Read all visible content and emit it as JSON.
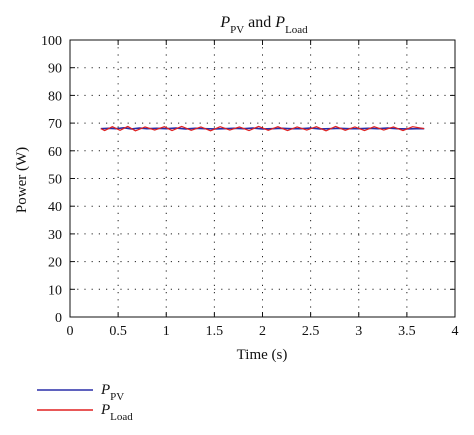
{
  "chart_data": {
    "type": "line",
    "title": {
      "prefix": "P",
      "prefix_sub": "PV",
      "middle": " and ",
      "suffix": "P",
      "suffix_sub": "Load"
    },
    "xlabel": "Time (s)",
    "ylabel": "Power (W)",
    "xlim": [
      0,
      4
    ],
    "ylim": [
      0,
      100
    ],
    "xticks": [
      "0",
      "0.5",
      "1",
      "1.5",
      "2",
      "2.5",
      "3",
      "3.5",
      "4"
    ],
    "xtick_values": [
      0,
      0.5,
      1,
      1.5,
      2,
      2.5,
      3,
      3.5,
      4
    ],
    "yticks": [
      "0",
      "10",
      "20",
      "30",
      "40",
      "50",
      "60",
      "70",
      "80",
      "90",
      "100"
    ],
    "ytick_values": [
      0,
      10,
      20,
      30,
      40,
      50,
      60,
      70,
      80,
      90,
      100
    ],
    "grid": true,
    "legend_position": "below",
    "series": [
      {
        "name_main": "P",
        "name_sub": "PV",
        "color": "#2a2ea8",
        "x": [
          0.32,
          0.4,
          0.48,
          0.56,
          0.64,
          0.72,
          0.8,
          0.9,
          1.0,
          1.1,
          1.2,
          1.3,
          1.4,
          1.5,
          1.6,
          1.7,
          1.8,
          1.9,
          2.0,
          2.1,
          2.2,
          2.3,
          2.4,
          2.5,
          2.6,
          2.7,
          2.8,
          2.9,
          3.0,
          3.1,
          3.2,
          3.3,
          3.4,
          3.5,
          3.6,
          3.68
        ],
        "values": [
          68.0,
          68.1,
          68.0,
          68.3,
          67.9,
          68.2,
          68.0,
          68.1,
          68.0,
          68.2,
          67.9,
          68.1,
          68.0,
          67.9,
          68.0,
          68.1,
          68.0,
          68.2,
          67.9,
          68.0,
          68.1,
          68.0,
          68.0,
          68.2,
          67.9,
          68.0,
          68.1,
          68.0,
          68.0,
          68.1,
          68.0,
          68.2,
          68.0,
          67.9,
          68.0,
          68.0
        ]
      },
      {
        "name_main": "P",
        "name_sub": "Load",
        "color": "#e02020",
        "x": [
          0.32,
          0.36,
          0.44,
          0.52,
          0.6,
          0.68,
          0.78,
          0.88,
          0.98,
          1.06,
          1.16,
          1.26,
          1.36,
          1.46,
          1.56,
          1.66,
          1.76,
          1.86,
          1.96,
          2.06,
          2.16,
          2.26,
          2.36,
          2.46,
          2.56,
          2.66,
          2.76,
          2.86,
          2.96,
          3.06,
          3.16,
          3.26,
          3.36,
          3.46,
          3.56,
          3.68
        ],
        "values": [
          68.0,
          67.3,
          68.7,
          67.4,
          68.8,
          67.2,
          68.6,
          67.5,
          68.7,
          67.3,
          68.8,
          67.4,
          68.6,
          67.2,
          68.7,
          67.5,
          68.6,
          67.3,
          68.8,
          67.4,
          68.7,
          67.3,
          68.6,
          67.5,
          68.7,
          67.2,
          68.8,
          67.4,
          68.6,
          67.3,
          68.7,
          67.5,
          68.6,
          67.3,
          68.7,
          68.0
        ]
      }
    ]
  }
}
